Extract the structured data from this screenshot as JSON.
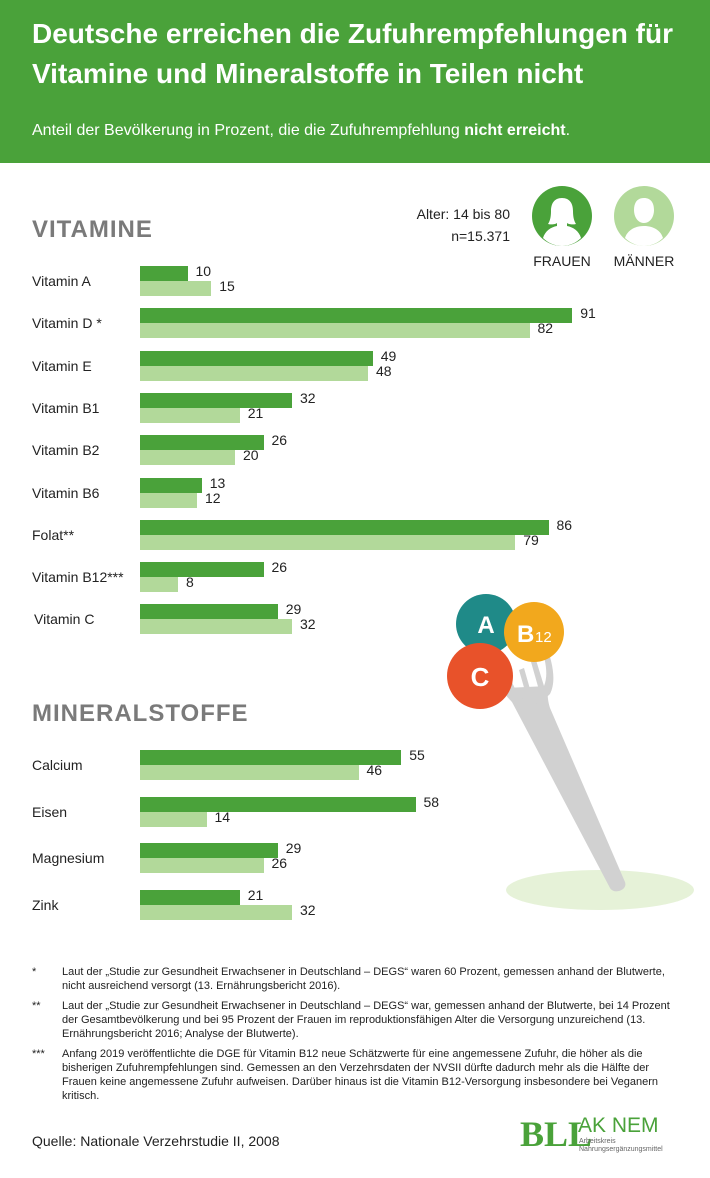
{
  "header": {
    "title": "Deutsche erreichen die Zufuhrempfehlungen für Vitamine und Mineralstoffe in Teilen nicht",
    "subtitle_pre": "Anteil der Bevölkerung in Prozent, die die Zufuhrempfehlung ",
    "subtitle_bold": "nicht erreicht",
    "subtitle_post": "."
  },
  "meta": {
    "age": "Alter: 14 bis 80",
    "n": "n=15.371"
  },
  "legend": {
    "women": "FRAUEN",
    "men": "MÄNNER"
  },
  "colors": {
    "women": "#4aa23a",
    "men": "#b2d99a",
    "header": "#4aa23a"
  },
  "chart_data": [
    {
      "type": "bar",
      "orientation": "horizontal",
      "title": "VITAMINE",
      "categories": [
        "Vitamin A",
        "Vitamin D *",
        "Vitamin E",
        "Vitamin B1",
        "Vitamin B2",
        "Vitamin B6",
        "Folat**",
        "Vitamin B12***",
        "Vitamin C"
      ],
      "series": [
        {
          "name": "FRAUEN",
          "values": [
            10,
            91,
            49,
            32,
            26,
            13,
            86,
            26,
            29
          ]
        },
        {
          "name": "MÄNNER",
          "values": [
            15,
            82,
            48,
            21,
            20,
            12,
            79,
            8,
            32
          ]
        }
      ],
      "xlim": [
        0,
        100
      ]
    },
    {
      "type": "bar",
      "orientation": "horizontal",
      "title": "MINERALSTOFFE",
      "categories": [
        "Calcium",
        "Eisen",
        "Magnesium",
        "Zink"
      ],
      "series": [
        {
          "name": "FRAUEN",
          "values": [
            55,
            58,
            29,
            21
          ]
        },
        {
          "name": "MÄNNER",
          "values": [
            46,
            14,
            26,
            32
          ]
        }
      ],
      "xlim": [
        0,
        100
      ]
    }
  ],
  "illustration": {
    "circle_a": "A",
    "circle_b": "B",
    "circle_b_sub": "12",
    "circle_c": "C"
  },
  "footnotes": [
    {
      "mark": "*",
      "text": "Laut der „Studie zur Gesundheit Erwachsener in Deutschland – DEGS“ waren 60 Prozent, gemessen anhand der Blutwerte, nicht ausreichend versorgt (13. Ernährungsbericht 2016)."
    },
    {
      "mark": "**",
      "text": "Laut der „Studie zur Gesundheit Erwachsener in Deutschland – DEGS“ war, gemessen anhand der Blutwerte, bei 14 Prozent der Gesamtbevölkerung und bei 95 Prozent der Frauen im reproduktionsfähigen Alter die Versorgung unzureichend (13. Ernährungsbericht 2016; Analyse der Blutwerte)."
    },
    {
      "mark": "***",
      "text": "Anfang 2019 veröffentlichte die DGE für Vitamin B12 neue Schätzwerte für eine angemessene Zufuhr, die höher als die bisherigen Zufuhrempfehlungen sind. Gemessen an den Verzehrsdaten der NVSII dürfte dadurch mehr als die Hälfte der Frauen keine angemessene Zufuhr aufweisen. Darüber hinaus ist die Vitamin B12-Versorgung insbesondere bei Veganern kritisch."
    }
  ],
  "source": "Quelle: Nationale Verzehrstudie II, 2008",
  "logo": {
    "mark": "BLL",
    "name": "AK NEM",
    "line1": "Arbeitskreis",
    "line2": "Nahrungsergänzungsmittel"
  }
}
